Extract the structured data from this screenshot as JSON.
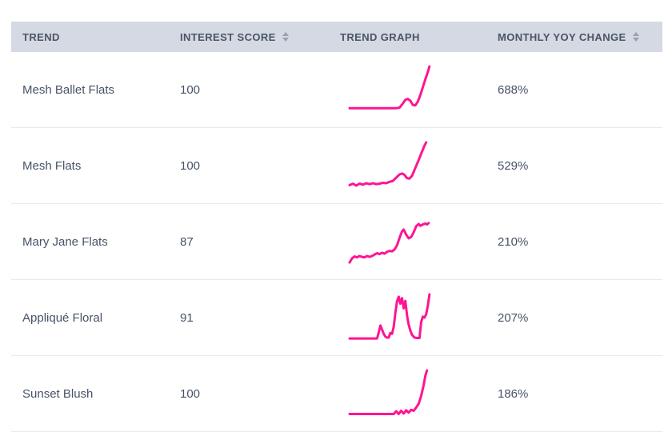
{
  "colors": {
    "accent_pink": "#ff1493",
    "header_bg": "#d4d9e3",
    "header_text": "#4a5568",
    "cell_text": "#475266",
    "divider": "#e7e9ef",
    "sort_icon": "#97a1b4"
  },
  "table": {
    "columns": [
      {
        "label": "TREND",
        "sortable": false
      },
      {
        "label": "INTEREST SCORE",
        "sortable": true
      },
      {
        "label": "TREND GRAPH",
        "sortable": false
      },
      {
        "label": "MONTHLY YOY CHANGE",
        "sortable": true
      }
    ],
    "rows": [
      {
        "trend": "Mesh Ballet Flats",
        "interest_score": "100",
        "yoy_change": "688%",
        "sparkline": [
          [
            0,
            10
          ],
          [
            8,
            10
          ],
          [
            16,
            10
          ],
          [
            24,
            10
          ],
          [
            32,
            10
          ],
          [
            40,
            10
          ],
          [
            48,
            10
          ],
          [
            56,
            10
          ],
          [
            60,
            11
          ],
          [
            64,
            20
          ],
          [
            67,
            28
          ],
          [
            70,
            30
          ],
          [
            73,
            26
          ],
          [
            76,
            17
          ],
          [
            79,
            16
          ],
          [
            82,
            24
          ],
          [
            85,
            38
          ],
          [
            88,
            55
          ],
          [
            91,
            72
          ],
          [
            94,
            88
          ],
          [
            96,
            100
          ]
        ]
      },
      {
        "trend": "Mesh Flats",
        "interest_score": "100",
        "yoy_change": "529%",
        "sparkline": [
          [
            0,
            8
          ],
          [
            4,
            11
          ],
          [
            8,
            7
          ],
          [
            12,
            11
          ],
          [
            16,
            9
          ],
          [
            20,
            12
          ],
          [
            24,
            10
          ],
          [
            28,
            12
          ],
          [
            32,
            10
          ],
          [
            36,
            11
          ],
          [
            40,
            13
          ],
          [
            44,
            12
          ],
          [
            48,
            15
          ],
          [
            52,
            17
          ],
          [
            56,
            24
          ],
          [
            60,
            31
          ],
          [
            63,
            33
          ],
          [
            66,
            30
          ],
          [
            69,
            23
          ],
          [
            72,
            22
          ],
          [
            75,
            28
          ],
          [
            79,
            45
          ],
          [
            83,
            62
          ],
          [
            87,
            80
          ],
          [
            90,
            93
          ],
          [
            92,
            100
          ]
        ]
      },
      {
        "trend": "Mary Jane Flats",
        "interest_score": "87",
        "yoy_change": "210%",
        "sparkline": [
          [
            0,
            5
          ],
          [
            3,
            14
          ],
          [
            6,
            18
          ],
          [
            9,
            16
          ],
          [
            12,
            19
          ],
          [
            15,
            17
          ],
          [
            18,
            16
          ],
          [
            21,
            19
          ],
          [
            24,
            17
          ],
          [
            27,
            19
          ],
          [
            30,
            22
          ],
          [
            33,
            25
          ],
          [
            36,
            23
          ],
          [
            39,
            26
          ],
          [
            42,
            24
          ],
          [
            45,
            28
          ],
          [
            48,
            30
          ],
          [
            51,
            29
          ],
          [
            54,
            33
          ],
          [
            57,
            42
          ],
          [
            60,
            58
          ],
          [
            63,
            72
          ],
          [
            65,
            76
          ],
          [
            68,
            65
          ],
          [
            71,
            57
          ],
          [
            74,
            60
          ],
          [
            77,
            70
          ],
          [
            80,
            83
          ],
          [
            83,
            88
          ],
          [
            85,
            84
          ],
          [
            88,
            87
          ],
          [
            91,
            89
          ],
          [
            93,
            87
          ],
          [
            95,
            90
          ]
        ]
      },
      {
        "trend": "Appliqué Floral",
        "interest_score": "91",
        "yoy_change": "207%",
        "sparkline": [
          [
            0,
            5
          ],
          [
            6,
            5
          ],
          [
            12,
            5
          ],
          [
            18,
            5
          ],
          [
            24,
            5
          ],
          [
            30,
            5
          ],
          [
            33,
            5
          ],
          [
            35,
            18
          ],
          [
            37,
            33
          ],
          [
            39,
            24
          ],
          [
            41,
            15
          ],
          [
            43,
            9
          ],
          [
            45,
            7
          ],
          [
            47,
            7
          ],
          [
            49,
            17
          ],
          [
            51,
            15
          ],
          [
            53,
            30
          ],
          [
            55,
            60
          ],
          [
            57,
            85
          ],
          [
            59,
            95
          ],
          [
            61,
            80
          ],
          [
            63,
            92
          ],
          [
            65,
            70
          ],
          [
            67,
            86
          ],
          [
            69,
            55
          ],
          [
            71,
            35
          ],
          [
            73,
            22
          ],
          [
            75,
            13
          ],
          [
            78,
            7
          ],
          [
            81,
            6
          ],
          [
            84,
            6
          ],
          [
            86,
            40
          ],
          [
            88,
            52
          ],
          [
            90,
            50
          ],
          [
            92,
            57
          ],
          [
            94,
            75
          ],
          [
            96,
            100
          ]
        ]
      },
      {
        "trend": "Sunset Blush",
        "interest_score": "100",
        "yoy_change": "186%",
        "sparkline": [
          [
            0,
            6
          ],
          [
            8,
            6
          ],
          [
            16,
            6
          ],
          [
            24,
            6
          ],
          [
            32,
            6
          ],
          [
            40,
            6
          ],
          [
            48,
            6
          ],
          [
            53,
            6
          ],
          [
            56,
            12
          ],
          [
            59,
            6
          ],
          [
            62,
            13
          ],
          [
            65,
            7
          ],
          [
            68,
            14
          ],
          [
            71,
            9
          ],
          [
            74,
            15
          ],
          [
            77,
            13
          ],
          [
            80,
            20
          ],
          [
            83,
            28
          ],
          [
            86,
            45
          ],
          [
            89,
            68
          ],
          [
            91,
            88
          ],
          [
            93,
            100
          ]
        ]
      }
    ]
  }
}
